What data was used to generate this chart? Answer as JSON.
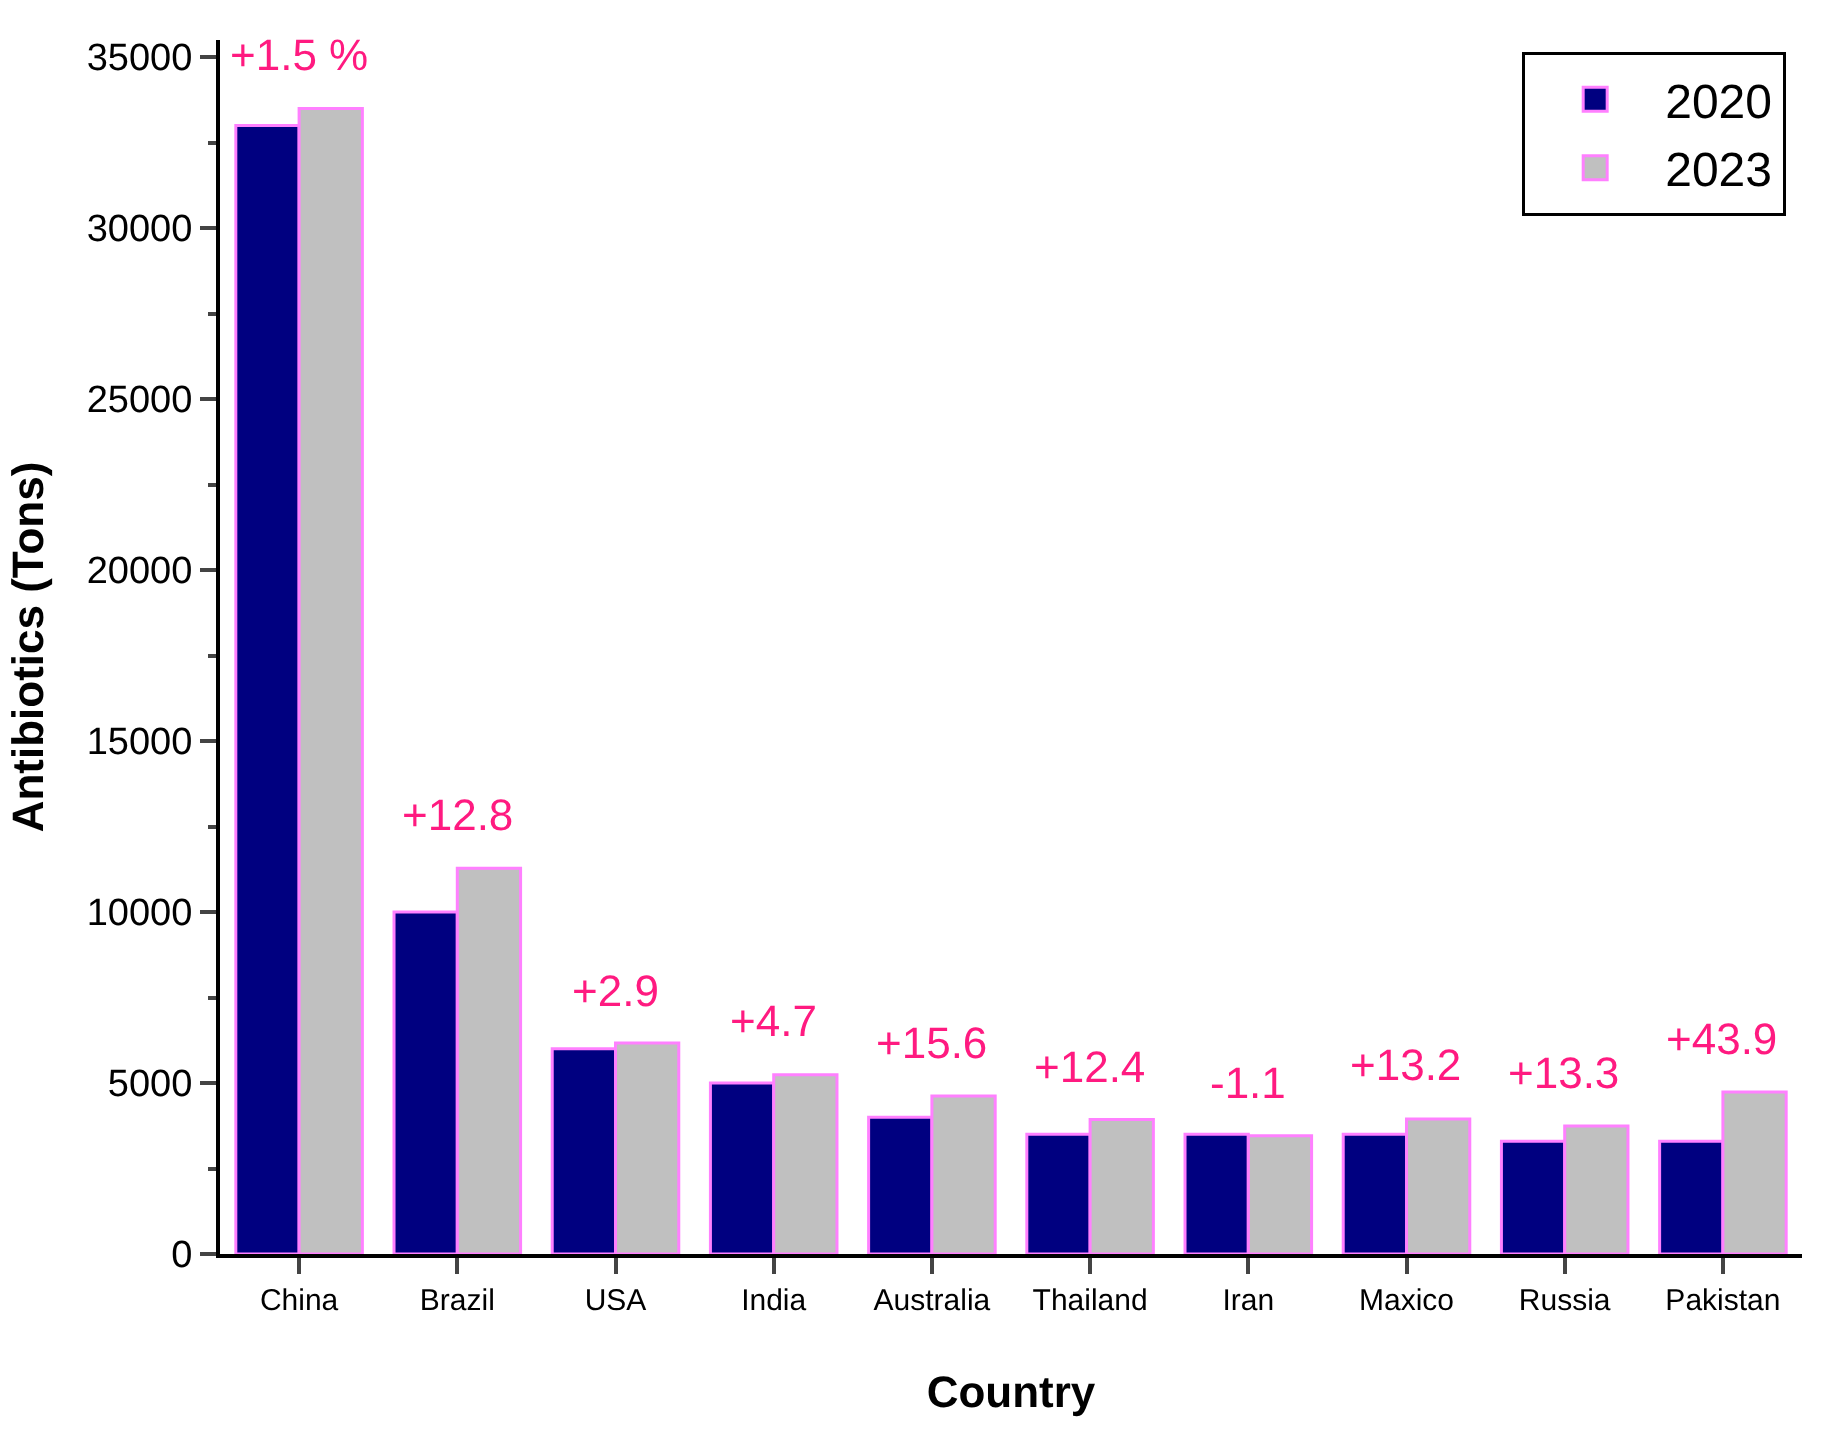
{
  "chart_data": {
    "type": "bar",
    "xlabel": "Country",
    "ylabel": "Antibiotics (Tons)",
    "categories": [
      "China",
      "Brazil",
      "USA",
      "India",
      "Australia",
      "Thailand",
      "Iran",
      "Maxico",
      "Russia",
      "Pakistan"
    ],
    "series": [
      {
        "name": "2020",
        "color": "#000080",
        "values": [
          33000,
          10000,
          6000,
          5000,
          4000,
          3500,
          3500,
          3500,
          3300,
          3300
        ]
      },
      {
        "name": "2023",
        "color": "#c0c0c0",
        "values": [
          33500,
          11280,
          6170,
          5240,
          4620,
          3930,
          3460,
          3950,
          3740,
          4740
        ]
      }
    ],
    "ylim": [
      0,
      35500
    ],
    "yticks": [
      0,
      5000,
      10000,
      15000,
      20000,
      25000,
      30000,
      35000
    ],
    "annotations": [
      {
        "text": "+1.5 %",
        "x": "China",
        "y": 33500
      },
      {
        "text": "+12.8",
        "x": "Brazil",
        "y": 11280
      },
      {
        "text": "+2.9",
        "x": "USA",
        "y": 6170
      },
      {
        "text": "+4.7",
        "x": "India",
        "y": 5240
      },
      {
        "text": "+15.6",
        "x": "Australia",
        "y": 4620
      },
      {
        "text": "+12.4",
        "x": "Thailand",
        "y": 3930
      },
      {
        "text": "-1.1",
        "x": "Iran",
        "y": 3460
      },
      {
        "text": "+13.2",
        "x": "Maxico",
        "y": 3950
      },
      {
        "text": "+13.3",
        "x": "Russia",
        "y": 3740
      },
      {
        "text": "+43.9",
        "x": "Pakistan",
        "y": 4740
      }
    ],
    "legend": "top right"
  }
}
